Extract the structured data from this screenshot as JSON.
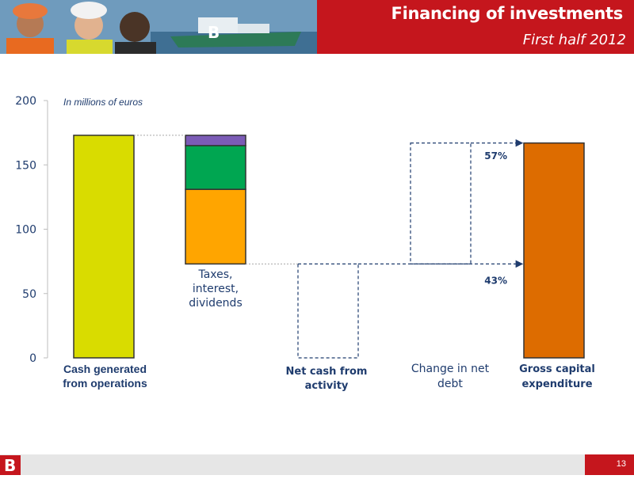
{
  "header": {
    "title": "Financing of investments",
    "subtitle": "First half 2012"
  },
  "footer": {
    "page_number": "13",
    "logo_letter": "B"
  },
  "colors": {
    "red": "#c5161d",
    "yellow": "#d9dc00",
    "orange_light": "#ffa500",
    "green": "#00a651",
    "purple": "#7b5bb6",
    "orange_dark": "#dd6c00",
    "navy": "#1f3c6e"
  },
  "chart_data": {
    "type": "bar",
    "subtype": "waterfall",
    "unit_note": "In millions of euros",
    "ylim": [
      0,
      200
    ],
    "yticks": [
      "0",
      "50",
      "100",
      "150",
      "200"
    ],
    "categories": [
      "Cash generated from operations",
      "Taxes, interest, dividends",
      "Net cash from activity",
      "Change in net debt",
      "Gross capital expenditure"
    ],
    "bars": [
      {
        "category": "Cash generated from operations",
        "segments": [
          {
            "from": 0,
            "to": 173,
            "color": "#d9dc00"
          }
        ]
      },
      {
        "category": "Taxes, interest, dividends",
        "segments": [
          {
            "from": 73,
            "to": 131,
            "color": "#ffa500"
          },
          {
            "from": 131,
            "to": 165,
            "color": "#00a651"
          },
          {
            "from": 165,
            "to": 173,
            "color": "#7b5bb6"
          }
        ]
      },
      {
        "category": "Net cash from activity",
        "dashed": true,
        "from": 0,
        "to": 73
      },
      {
        "category": "Change in net debt",
        "dashed": true,
        "from": 73,
        "to": 167
      },
      {
        "category": "Gross capital expenditure",
        "segments": [
          {
            "from": 0,
            "to": 167,
            "color": "#dd6c00"
          }
        ]
      }
    ],
    "annotations": [
      {
        "text": "57%",
        "y": 157
      },
      {
        "text": "43%",
        "y": 60
      }
    ]
  },
  "labels": {
    "cat1": "Cash generated from operations",
    "cat2": "Taxes, interest, dividends",
    "cat3": "Net cash from activity",
    "cat4": "Change in net debt",
    "cat5": "Gross capital expenditure"
  }
}
